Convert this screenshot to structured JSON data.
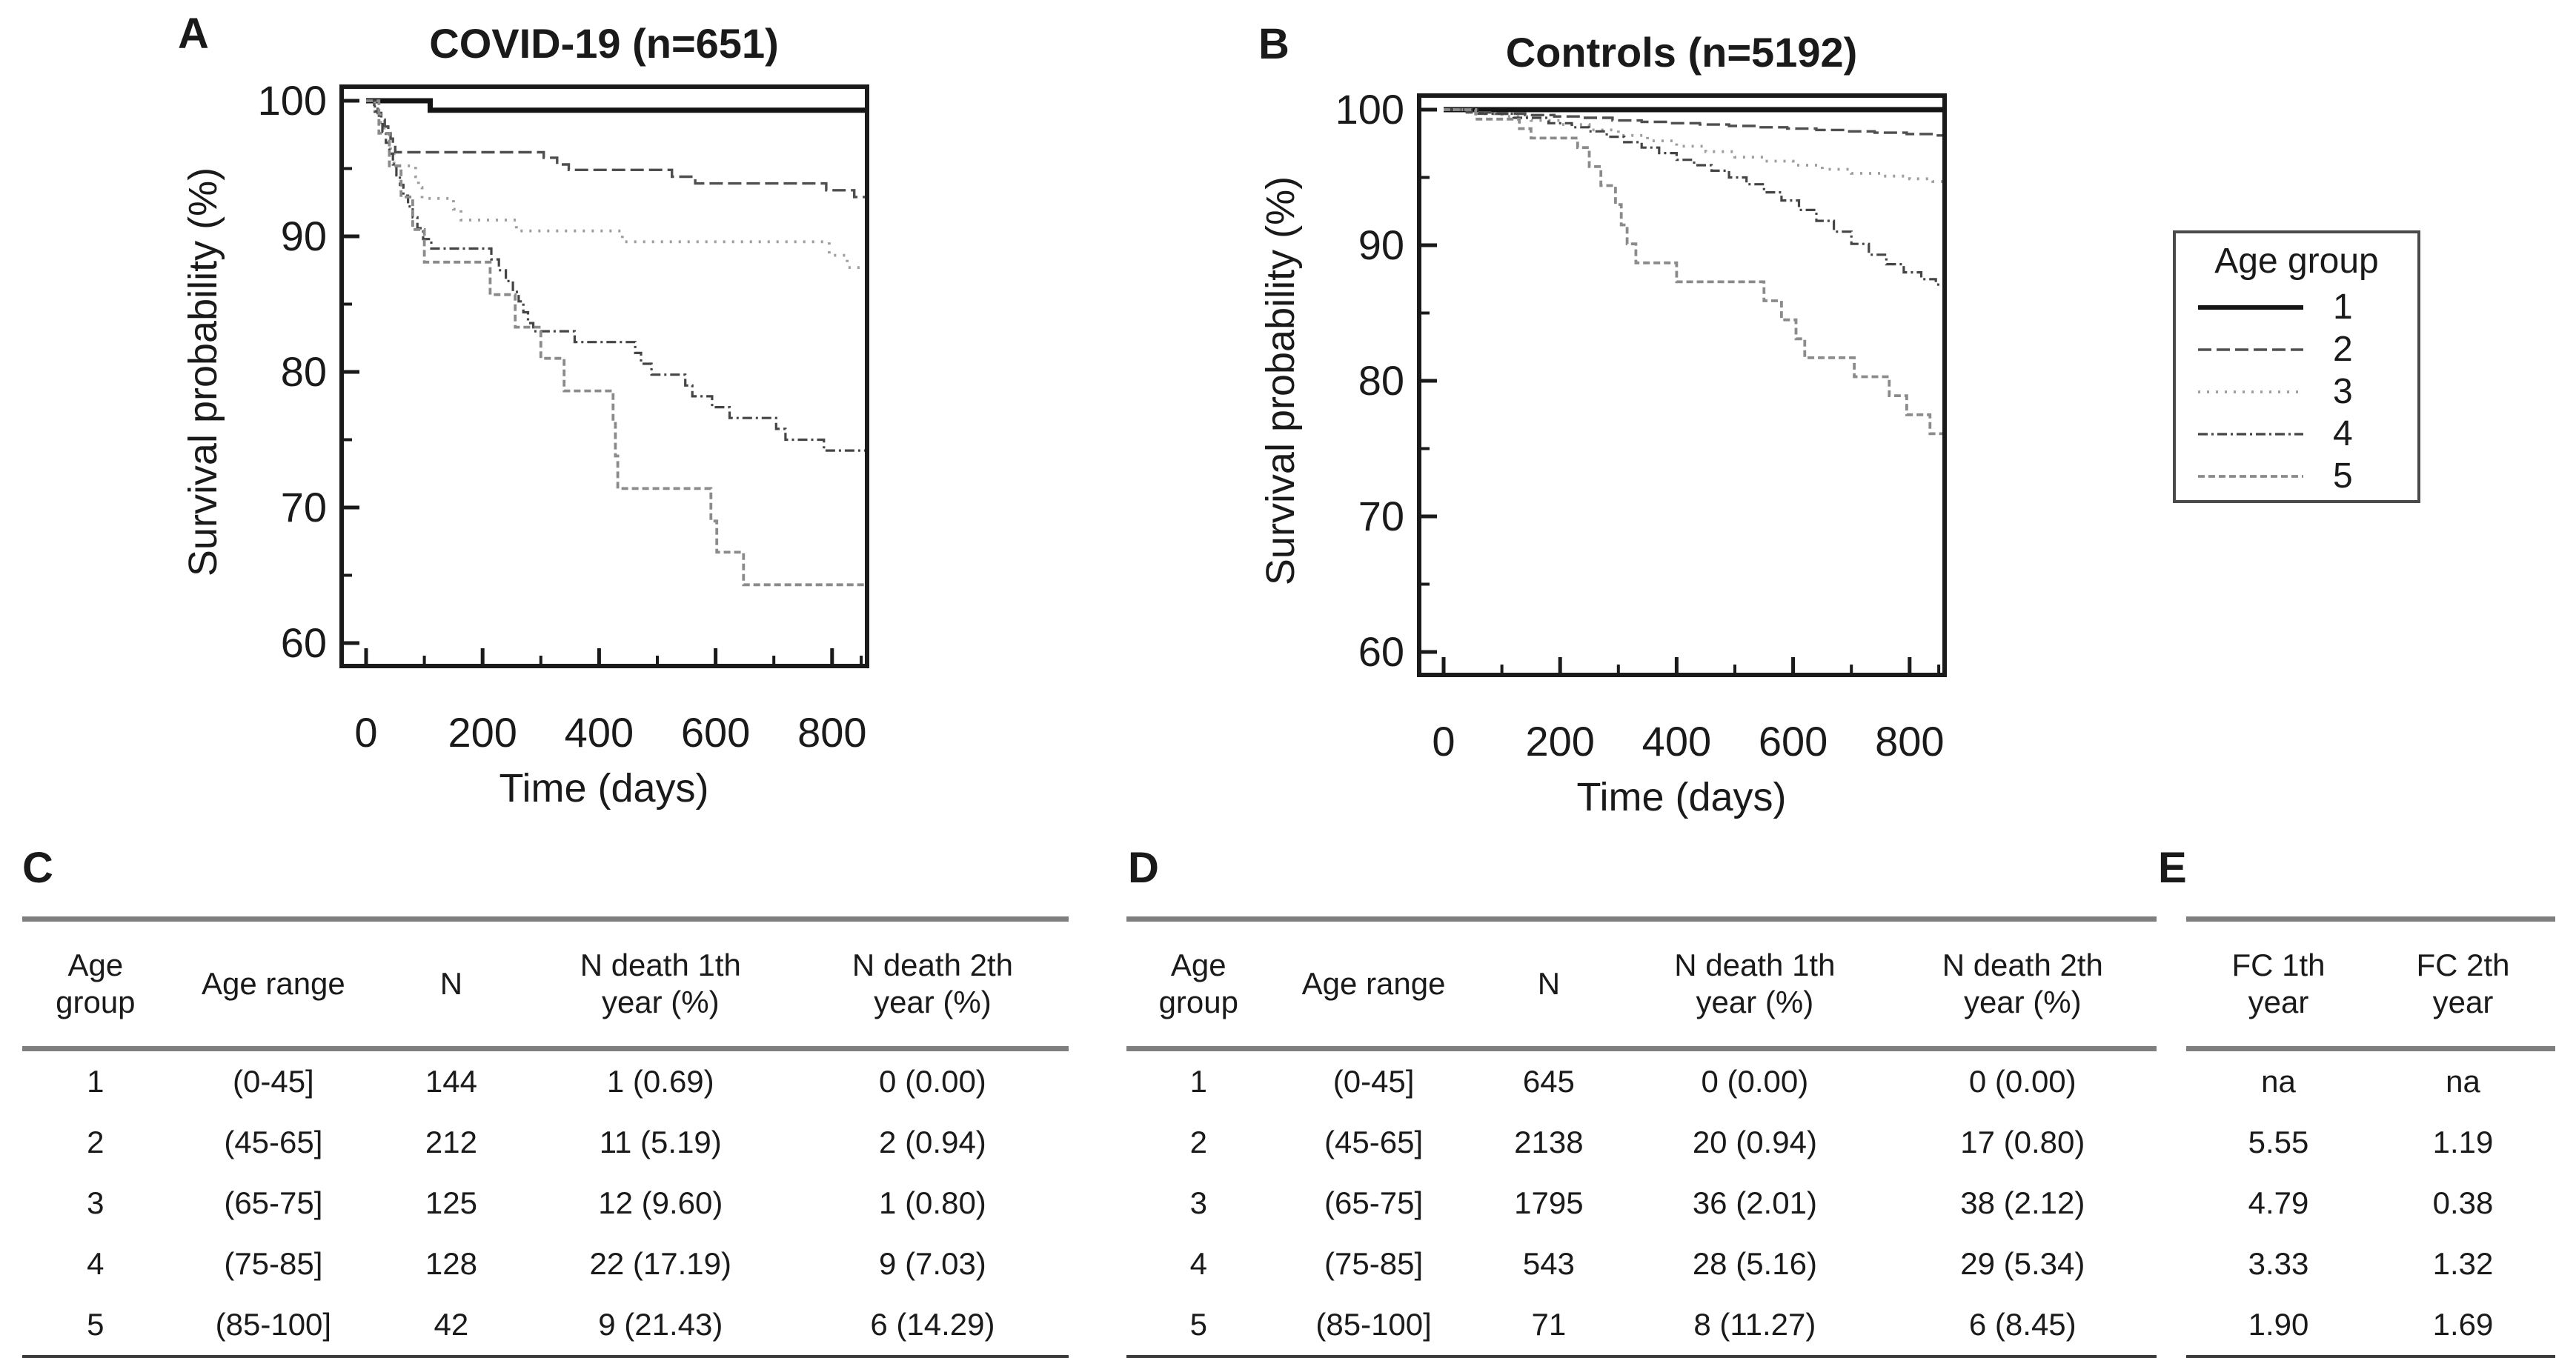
{
  "figure": {
    "panel_labels": {
      "a": "A",
      "b": "B",
      "c": "C",
      "d": "D",
      "e": "E"
    }
  },
  "legend": {
    "title": "Age group",
    "items": [
      "1",
      "2",
      "3",
      "4",
      "5"
    ]
  },
  "chart_data": [
    {
      "id": "A",
      "type": "line",
      "subtype": "kaplan-meier-step",
      "title": "COVID-19 (n=651)",
      "xlabel": "Time (days)",
      "ylabel": "Survival probability (%)",
      "xlim": [
        0,
        860
      ],
      "ylim": [
        60,
        100
      ],
      "xticks": [
        0,
        200,
        400,
        600,
        800
      ],
      "xminorticks": [
        100,
        300,
        500,
        700,
        850
      ],
      "yticks": [
        100,
        90,
        80,
        70,
        60
      ],
      "yminorticks": [
        95,
        85,
        75,
        65
      ],
      "grid": false,
      "legend_position": "outside-right",
      "series": [
        {
          "name": "1",
          "age_range": "(0-45]",
          "color": "#141414",
          "dash": "",
          "width": 7,
          "points": [
            [
              0,
              100
            ],
            [
              110,
              99.3
            ]
          ]
        },
        {
          "name": "2",
          "age_range": "(45-65]",
          "color": "#4f4f4f",
          "dash": "18 7",
          "width": 3.4,
          "points": [
            [
              0,
              100
            ],
            [
              14,
              99.5
            ],
            [
              20,
              99.1
            ],
            [
              26,
              98.6
            ],
            [
              32,
              98.1
            ],
            [
              38,
              97.6
            ],
            [
              42,
              97.2
            ],
            [
              46,
              96.7
            ],
            [
              50,
              96.2
            ],
            [
              305,
              95.8
            ],
            [
              328,
              95.3
            ],
            [
              348,
              94.9
            ],
            [
              525,
              94.4
            ],
            [
              565,
              93.9
            ],
            [
              790,
              93.4
            ],
            [
              838,
              92.9
            ]
          ]
        },
        {
          "name": "3",
          "age_range": "(65-75]",
          "color": "#9e9e9e",
          "dash": "3 9",
          "width": 3.8,
          "points": [
            [
              0,
              100
            ],
            [
              15,
              99.2
            ],
            [
              24,
              98.4
            ],
            [
              31,
              97.6
            ],
            [
              37,
              96.8
            ],
            [
              42,
              96.0
            ],
            [
              48,
              95.2
            ],
            [
              85,
              94.4
            ],
            [
              90,
              93.6
            ],
            [
              96,
              92.8
            ],
            [
              150,
              92.0
            ],
            [
              163,
              91.2
            ],
            [
              258,
              90.4
            ],
            [
              440,
              89.6
            ],
            [
              795,
              88.6
            ],
            [
              826,
              87.7
            ]
          ]
        },
        {
          "name": "4",
          "age_range": "(75-85]",
          "color": "#454545",
          "dash": "13 5 3 5",
          "width": 3.2,
          "points": [
            [
              0,
              100
            ],
            [
              15,
              99.2
            ],
            [
              22,
              98.4
            ],
            [
              28,
              97.7
            ],
            [
              34,
              96.9
            ],
            [
              40,
              96.1
            ],
            [
              46,
              95.3
            ],
            [
              52,
              94.5
            ],
            [
              58,
              93.8
            ],
            [
              64,
              93.0
            ],
            [
              72,
              92.2
            ],
            [
              80,
              91.4
            ],
            [
              88,
              90.6
            ],
            [
              98,
              89.8
            ],
            [
              112,
              89.1
            ],
            [
              215,
              88.3
            ],
            [
              228,
              87.5
            ],
            [
              240,
              86.7
            ],
            [
              252,
              85.9
            ],
            [
              262,
              85.2
            ],
            [
              270,
              84.4
            ],
            [
              278,
              83.6
            ],
            [
              287,
              83.0
            ],
            [
              358,
              82.2
            ],
            [
              462,
              81.4
            ],
            [
              472,
              80.6
            ],
            [
              490,
              79.8
            ],
            [
              548,
              79.0
            ],
            [
              560,
              78.2
            ],
            [
              594,
              77.4
            ],
            [
              624,
              76.6
            ],
            [
              704,
              75.8
            ],
            [
              720,
              75.0
            ],
            [
              786,
              74.2
            ]
          ]
        },
        {
          "name": "5",
          "age_range": "(85-100]",
          "color": "#8b8b8b",
          "dash": "9 5",
          "width": 3.8,
          "points": [
            [
              0,
              100
            ],
            [
              22,
              97.6
            ],
            [
              40,
              95.2
            ],
            [
              60,
              92.9
            ],
            [
              80,
              90.5
            ],
            [
              100,
              88.1
            ],
            [
              213,
              85.7
            ],
            [
              256,
              83.3
            ],
            [
              300,
              81.0
            ],
            [
              340,
              78.6
            ],
            [
              424,
              76.2
            ],
            [
              428,
              73.8
            ],
            [
              432,
              71.4
            ],
            [
              592,
              69.0
            ],
            [
              602,
              66.7
            ],
            [
              648,
              64.3
            ]
          ]
        }
      ]
    },
    {
      "id": "B",
      "type": "line",
      "subtype": "kaplan-meier-step",
      "title": "Controls (n=5192)",
      "xlabel": "Time (days)",
      "ylabel": "Survival probability (%)",
      "xlim": [
        0,
        860
      ],
      "ylim": [
        60,
        100
      ],
      "xticks": [
        0,
        200,
        400,
        600,
        800
      ],
      "xminorticks": [
        100,
        300,
        500,
        700,
        850
      ],
      "yticks": [
        100,
        90,
        80,
        70,
        60
      ],
      "yminorticks": [
        95,
        85,
        75,
        65
      ],
      "grid": false,
      "legend_position": "outside-right",
      "series": [
        {
          "name": "1",
          "age_range": "(0-45]",
          "color": "#141414",
          "dash": "",
          "width": 7,
          "points": [
            [
              0,
              100
            ]
          ]
        },
        {
          "name": "2",
          "age_range": "(45-65]",
          "color": "#4f4f4f",
          "dash": "18 7",
          "width": 3.4,
          "points": [
            [
              0,
              100
            ],
            [
              40,
              99.8
            ],
            [
              90,
              99.7
            ],
            [
              140,
              99.6
            ],
            [
              190,
              99.5
            ],
            [
              240,
              99.4
            ],
            [
              290,
              99.2
            ],
            [
              340,
              99.1
            ],
            [
              390,
              99.0
            ],
            [
              440,
              98.9
            ],
            [
              490,
              98.8
            ],
            [
              540,
              98.7
            ],
            [
              590,
              98.6
            ],
            [
              640,
              98.5
            ],
            [
              690,
              98.4
            ],
            [
              740,
              98.3
            ],
            [
              795,
              98.2
            ],
            [
              840,
              98.1
            ]
          ]
        },
        {
          "name": "3",
          "age_range": "(65-75]",
          "color": "#9e9e9e",
          "dash": "3 9",
          "width": 3.8,
          "points": [
            [
              0,
              100
            ],
            [
              50,
              99.7
            ],
            [
              100,
              99.5
            ],
            [
              150,
              99.2
            ],
            [
              200,
              98.9
            ],
            [
              250,
              98.5
            ],
            [
              300,
              98.1
            ],
            [
              350,
              97.7
            ],
            [
              400,
              97.3
            ],
            [
              450,
              96.9
            ],
            [
              500,
              96.5
            ],
            [
              550,
              96.2
            ],
            [
              600,
              95.9
            ],
            [
              650,
              95.6
            ],
            [
              700,
              95.3
            ],
            [
              750,
              95.1
            ],
            [
              800,
              94.9
            ],
            [
              840,
              94.7
            ]
          ]
        },
        {
          "name": "4",
          "age_range": "(75-85]",
          "color": "#454545",
          "dash": "13 5 3 5",
          "width": 3.2,
          "points": [
            [
              0,
              100
            ],
            [
              60,
              99.7
            ],
            [
              120,
              99.4
            ],
            [
              180,
              99.0
            ],
            [
              220,
              98.7
            ],
            [
              250,
              98.4
            ],
            [
              280,
              98.0
            ],
            [
              310,
              97.6
            ],
            [
              340,
              97.2
            ],
            [
              370,
              96.8
            ],
            [
              400,
              96.3
            ],
            [
              430,
              95.9
            ],
            [
              460,
              95.5
            ],
            [
              490,
              95.0
            ],
            [
              520,
              94.5
            ],
            [
              550,
              93.9
            ],
            [
              580,
              93.3
            ],
            [
              610,
              92.6
            ],
            [
              640,
              91.8
            ],
            [
              670,
              91.0
            ],
            [
              700,
              90.1
            ],
            [
              730,
              89.3
            ],
            [
              760,
              88.6
            ],
            [
              790,
              88.0
            ],
            [
              820,
              87.5
            ],
            [
              845,
              87.1
            ]
          ]
        },
        {
          "name": "5",
          "age_range": "(85-100]",
          "color": "#8b8b8b",
          "dash": "9 5",
          "width": 3.8,
          "points": [
            [
              0,
              100
            ],
            [
              55,
              99.3
            ],
            [
              130,
              98.6
            ],
            [
              150,
              97.9
            ],
            [
              230,
              97.2
            ],
            [
              250,
              95.8
            ],
            [
              270,
              94.4
            ],
            [
              295,
              93.0
            ],
            [
              305,
              91.5
            ],
            [
              315,
              90.1
            ],
            [
              330,
              88.7
            ],
            [
              400,
              87.3
            ],
            [
              550,
              85.9
            ],
            [
              580,
              84.5
            ],
            [
              605,
              83.1
            ],
            [
              620,
              81.7
            ],
            [
              705,
              80.3
            ],
            [
              765,
              78.9
            ],
            [
              795,
              77.5
            ],
            [
              835,
              76.1
            ]
          ]
        }
      ]
    }
  ],
  "tables": [
    {
      "id": "C",
      "columns": [
        "Age\ngroup",
        "Age  range",
        "N",
        "N death 1th\nyear (%)",
        "N death 2th\nyear (%)"
      ],
      "col_widths": [
        "14%",
        "20%",
        "14%",
        "26%",
        "26%"
      ],
      "rows": [
        [
          "1",
          "(0-45]",
          "144",
          "1 (0.69)",
          "0 (0.00)"
        ],
        [
          "2",
          "(45-65]",
          "212",
          "11 (5.19)",
          "2 (0.94)"
        ],
        [
          "3",
          "(65-75]",
          "125",
          "12 (9.60)",
          "1 (0.80)"
        ],
        [
          "4",
          "(75-85]",
          "128",
          "22 (17.19)",
          "9 (7.03)"
        ],
        [
          "5",
          "(85-100]",
          "42",
          "9 (21.43)",
          "6 (14.29)"
        ]
      ]
    },
    {
      "id": "D",
      "columns": [
        "Age\ngroup",
        "Age range",
        "N",
        "N death 1th\nyear (%)",
        "N death 2th\nyear (%)"
      ],
      "col_widths": [
        "14%",
        "20%",
        "14%",
        "26%",
        "26%"
      ],
      "rows": [
        [
          "1",
          "(0-45]",
          "645",
          "0 (0.00)",
          "0 (0.00)"
        ],
        [
          "2",
          "(45-65]",
          "2138",
          "20 (0.94)",
          "17 (0.80)"
        ],
        [
          "3",
          "(65-75]",
          "1795",
          "36 (2.01)",
          "38 (2.12)"
        ],
        [
          "4",
          "(75-85]",
          "543",
          "28 (5.16)",
          "29 (5.34)"
        ],
        [
          "5",
          "(85-100]",
          "71",
          "8 (11.27)",
          "6 (8.45)"
        ]
      ]
    },
    {
      "id": "E",
      "columns": [
        "FC 1th\nyear",
        "FC 2th\nyear"
      ],
      "col_widths": [
        "50%",
        "50%"
      ],
      "rows": [
        [
          "na",
          "na"
        ],
        [
          "5.55",
          "1.19"
        ],
        [
          "4.79",
          "0.38"
        ],
        [
          "3.33",
          "1.32"
        ],
        [
          "1.90",
          "1.69"
        ]
      ]
    }
  ]
}
